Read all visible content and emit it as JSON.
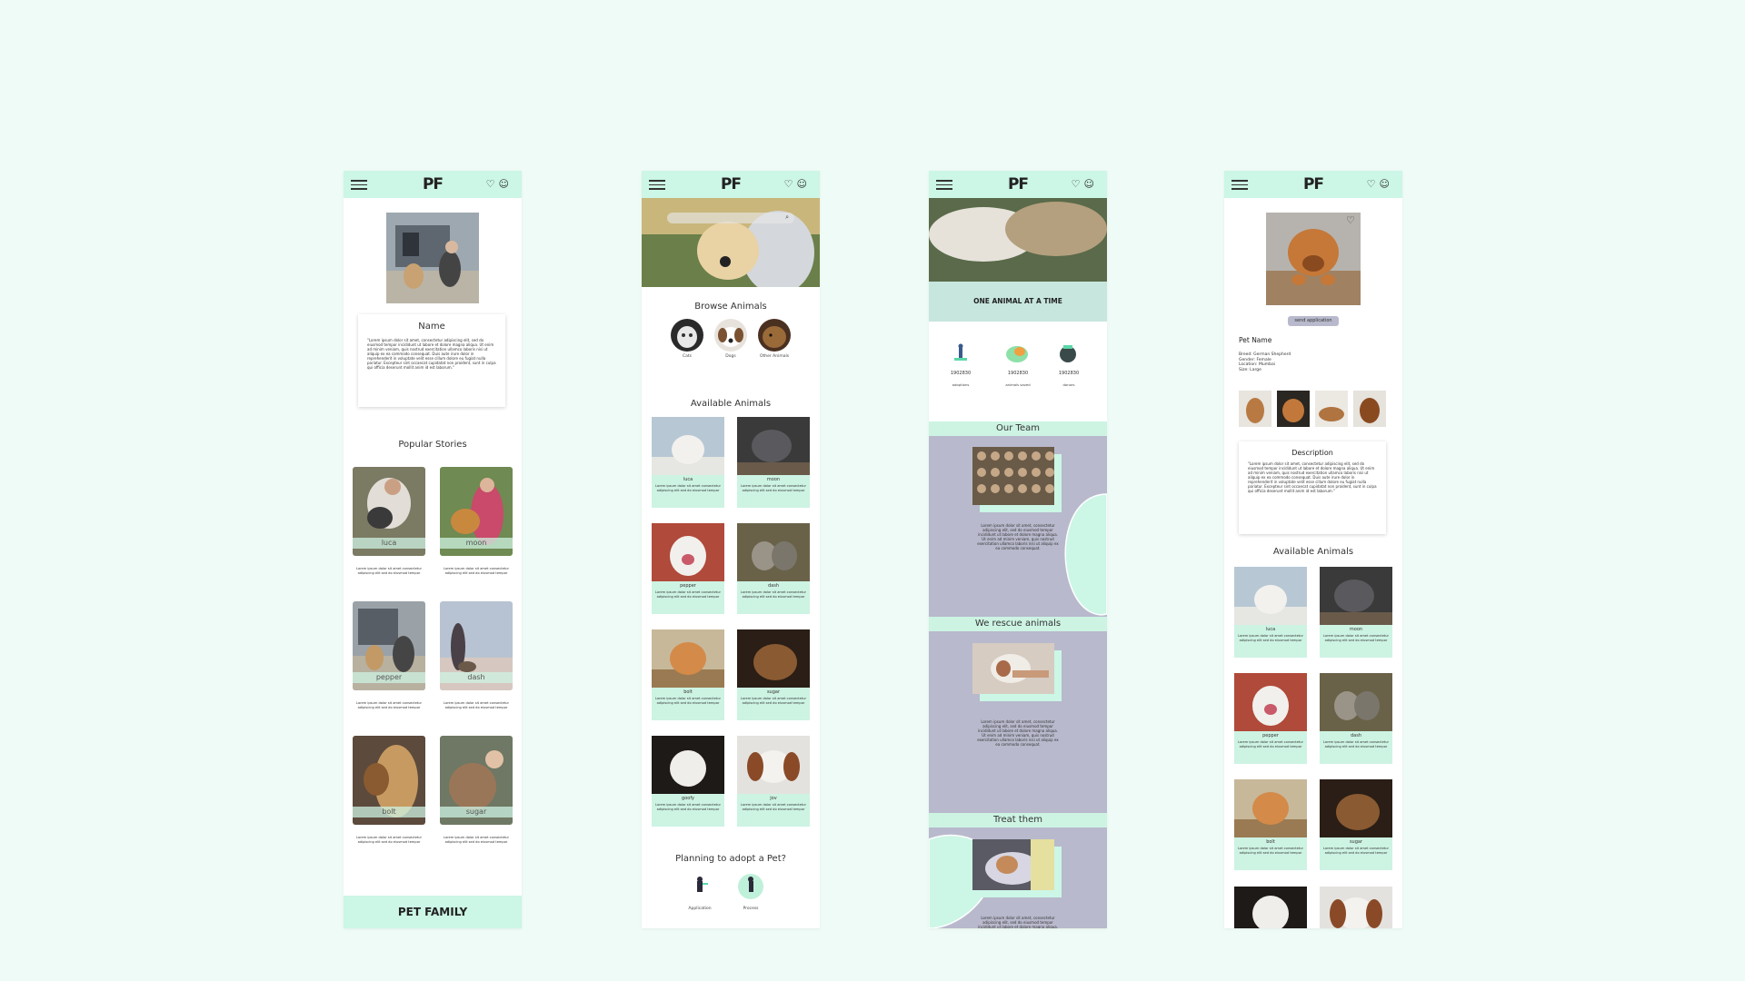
{
  "brand": {
    "logo": "PF",
    "footer": "PET FAMILY"
  },
  "header": {
    "menu_icon": "hamburger-icon",
    "heart_icon": "♡",
    "profile_icon": "☺"
  },
  "lorem_long": "\"Lorem ipsum dolor sit amet, consectetur adipiscing elit, sed do eiusmod tempor incididunt ut labore et dolore magna aliqua. Ut enim ad minim veniam, quis nostrud exercitation ullamco laboris nisi ut aliquip ex ea commodo consequat. Duis aute irure dolor in reprehenderit in voluptate velit esse cillum dolore eu fugiat nulla pariatur. Excepteur sint occaecat cupidatat non proident, sunt in culpa qui officia deserunt mollit anim id est laborum.\"",
  "lorem_short": "Lorem ipsum dolor sit amet consectetur adipiscing elit sed do eiusmod tempor",
  "lorem_mid": "Lorem ipsum dolor sit amet, consectetur adipiscing elit, sed do eiusmod tempor incididunt ut labore et dolore magna aliqua. Ut enim ad minim veniam, quis nostrud exercitation ullamco laboris nisi ut aliquip ex ea commodo consequat.",
  "screen1": {
    "card_title": "Name",
    "section_title": "Popular Stories",
    "stories": [
      "luca",
      "moon",
      "pepper",
      "dash",
      "bolt",
      "sugar"
    ]
  },
  "screen2": {
    "browse_title": "Browse Animals",
    "categories": [
      "Cats",
      "Dogs",
      "Other Animals"
    ],
    "available_title": "Available Animals",
    "animals": [
      "luca",
      "moon",
      "pepper",
      "dash",
      "bolt",
      "sugar",
      "goofy",
      "jov"
    ],
    "adopt_title": "Planning to adopt a Pet?",
    "steps": [
      "Application",
      "Process"
    ]
  },
  "screen3": {
    "tagline": "ONE ANIMAL AT A TIME",
    "stats": [
      {
        "value": "1902830",
        "label": "adoptions"
      },
      {
        "value": "1902830",
        "label": "animals saved"
      },
      {
        "value": "1902830",
        "label": "donors"
      }
    ],
    "sections": [
      "Our Team",
      "We rescue animals",
      "Treat them"
    ]
  },
  "screen4": {
    "button": "send application",
    "pet_name": "Pet Name",
    "details": [
      "Breed: German Shepherd",
      "Gender: Female",
      "Location: Mumbai",
      "Size: Large"
    ],
    "description_title": "Description",
    "available_title": "Available Animals",
    "animals": [
      "luca",
      "moon",
      "pepper",
      "dash",
      "bolt",
      "sugar"
    ]
  },
  "colors": {
    "background": "#effbf6",
    "mint": "#ccf6e6",
    "lavender": "#b8b9cc"
  }
}
